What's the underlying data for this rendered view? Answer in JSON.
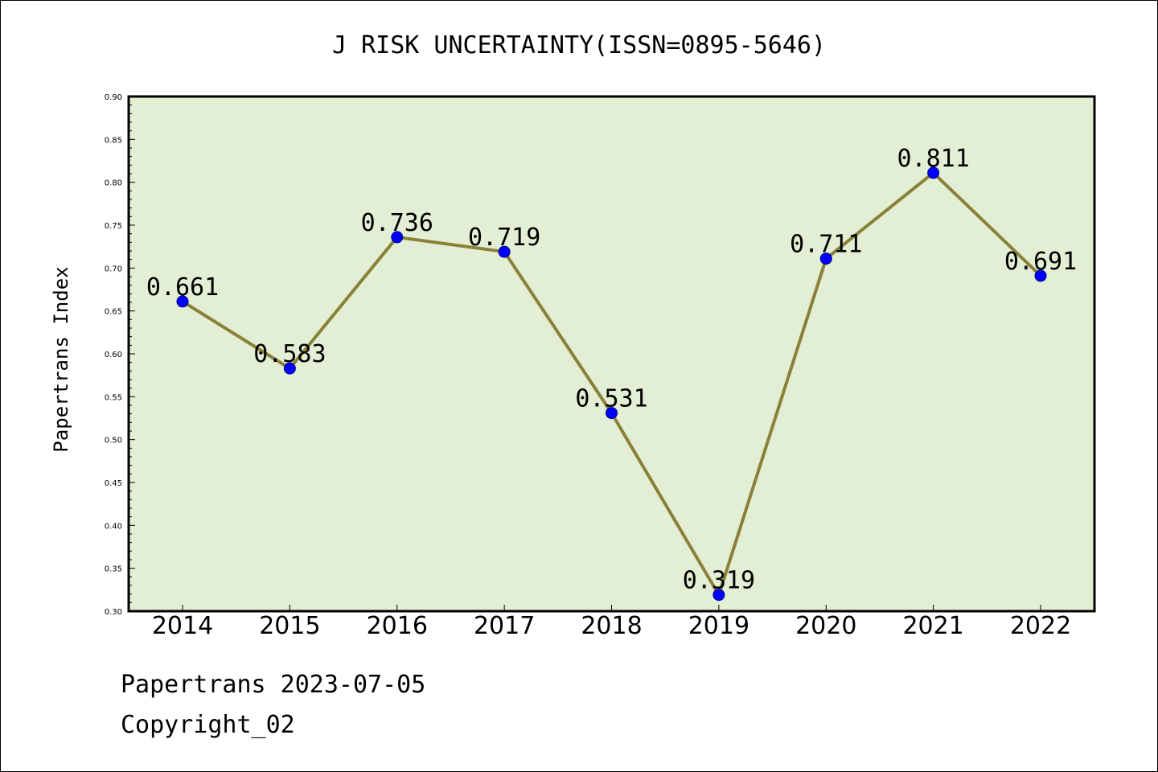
{
  "chart_data": {
    "type": "line",
    "title": "J RISK UNCERTAINTY(ISSN=0895-5646)",
    "xlabel": "",
    "ylabel": "Papertrans Index",
    "categories": [
      "2014",
      "2015",
      "2016",
      "2017",
      "2018",
      "2019",
      "2020",
      "2021",
      "2022"
    ],
    "series": [
      {
        "values": [
          0.661,
          0.583,
          0.736,
          0.719,
          0.531,
          0.319,
          0.711,
          0.811,
          0.691
        ]
      }
    ],
    "data_labels": [
      "0.661",
      "0.583",
      "0.736",
      "0.719",
      "0.531",
      "0.319",
      "0.711",
      "0.811",
      "0.691"
    ],
    "ylim": [
      0.3,
      0.9
    ],
    "yticks": [
      "0.30",
      "0.35",
      "0.40",
      "0.45",
      "0.50",
      "0.55",
      "0.60",
      "0.65",
      "0.70",
      "0.75",
      "0.80",
      "0.85",
      "0.90"
    ],
    "grid": false,
    "colors": {
      "plot_bg": "#e2efd4",
      "line": "#8b8038",
      "marker": "#0000ff"
    }
  },
  "footer": {
    "line1": "Papertrans 2023-07-05",
    "line2": "Copyright_02"
  }
}
